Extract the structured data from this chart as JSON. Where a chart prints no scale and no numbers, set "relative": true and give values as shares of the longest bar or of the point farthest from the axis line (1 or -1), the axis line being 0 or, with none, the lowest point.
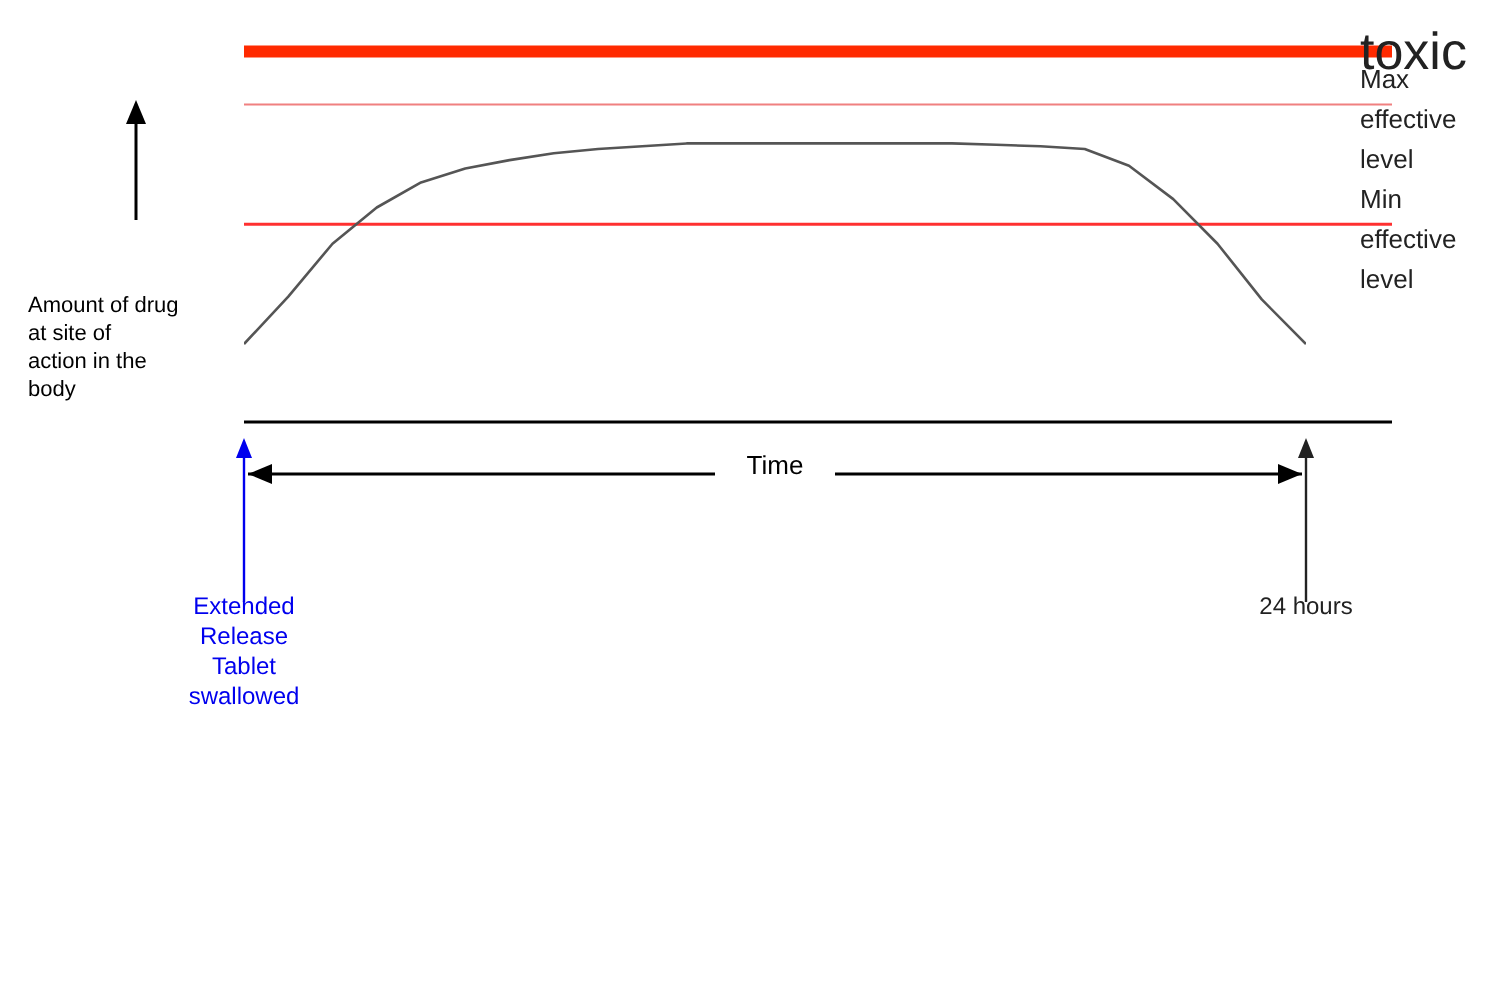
{
  "chart_data": {
    "type": "line",
    "relative": true,
    "xlabel": "Time",
    "ylabel": "Amount of drug at site of action in the body",
    "categories": [
      "Extended Release Tablet swallowed",
      null,
      null,
      null,
      null,
      null,
      null,
      null,
      null,
      null,
      null,
      null,
      null,
      null,
      null,
      null,
      null,
      null,
      null,
      null,
      null,
      null,
      null,
      null,
      "24 hours"
    ],
    "series": [
      {
        "color": "#555555",
        "values": [
          0.28,
          0.45,
          0.64,
          0.77,
          0.86,
          0.91,
          0.94,
          0.965,
          0.98,
          0.99,
          1,
          1,
          1,
          1,
          1,
          1,
          1,
          0.995,
          0.99,
          0.98,
          0.92,
          0.8,
          0.64,
          0.44,
          0.28
        ]
      }
    ],
    "ref_lines": [
      {
        "axis": "y",
        "value": 1.33,
        "label": "toxic",
        "color": "#ff2a00"
      },
      {
        "axis": "y",
        "value": 1.14,
        "label": "Max effective level",
        "color": "#f08080"
      },
      {
        "axis": "y",
        "value": 0.71,
        "label": "Min effective level",
        "color": "#ff3030"
      }
    ],
    "marker": "none",
    "line_style": "solid",
    "grid": false,
    "legend": false
  }
}
